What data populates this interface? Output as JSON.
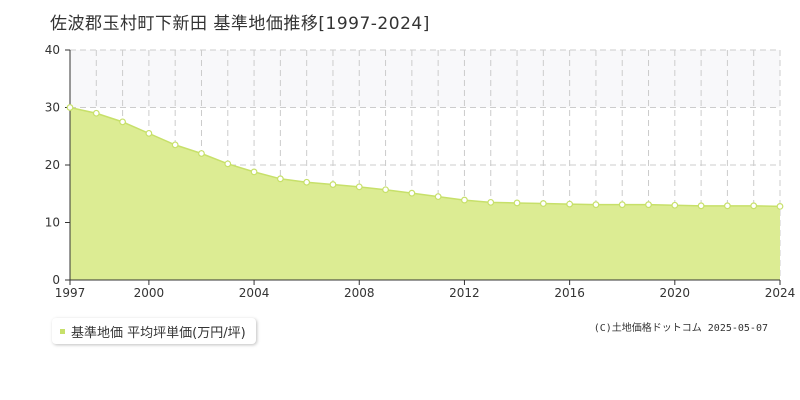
{
  "colors": {
    "fill": "#dcec93",
    "line": "#c7e06a",
    "point_fill": "#ffffff",
    "band": "#f8f8fa",
    "grid": "#cccccc",
    "axis": "#333333"
  },
  "chart_data": {
    "type": "area",
    "title": "佐波郡玉村町下新田 基準地価推移[1997-2024]",
    "xlabel": "",
    "ylabel": "",
    "x": [
      1997,
      1998,
      1999,
      2000,
      2001,
      2002,
      2003,
      2004,
      2005,
      2006,
      2007,
      2008,
      2009,
      2010,
      2011,
      2012,
      2013,
      2014,
      2015,
      2016,
      2017,
      2018,
      2019,
      2020,
      2021,
      2022,
      2023,
      2024
    ],
    "series": [
      {
        "name": "基準地価 平均坪単価(万円/坪)",
        "values": [
          30.0,
          29.0,
          27.5,
          25.5,
          23.5,
          22.0,
          20.2,
          18.8,
          17.6,
          17.0,
          16.6,
          16.2,
          15.7,
          15.1,
          14.5,
          13.9,
          13.5,
          13.4,
          13.3,
          13.2,
          13.1,
          13.1,
          13.1,
          13.0,
          12.9,
          12.9,
          12.9,
          12.8
        ]
      }
    ],
    "xlim": [
      1997,
      2024
    ],
    "ylim": [
      0,
      40
    ],
    "x_ticks": [
      "1997",
      "2000",
      "2004",
      "2008",
      "2012",
      "2016",
      "2020",
      "2024"
    ],
    "y_ticks": [
      "0",
      "10",
      "20",
      "30",
      "40"
    ],
    "grid": true,
    "highlight_band": [
      30,
      40
    ],
    "legend": "bottom-left"
  },
  "legend_label": "基準地価 平均坪単価(万円/坪)",
  "copyright": "(C)土地価格ドットコム 2025-05-07"
}
